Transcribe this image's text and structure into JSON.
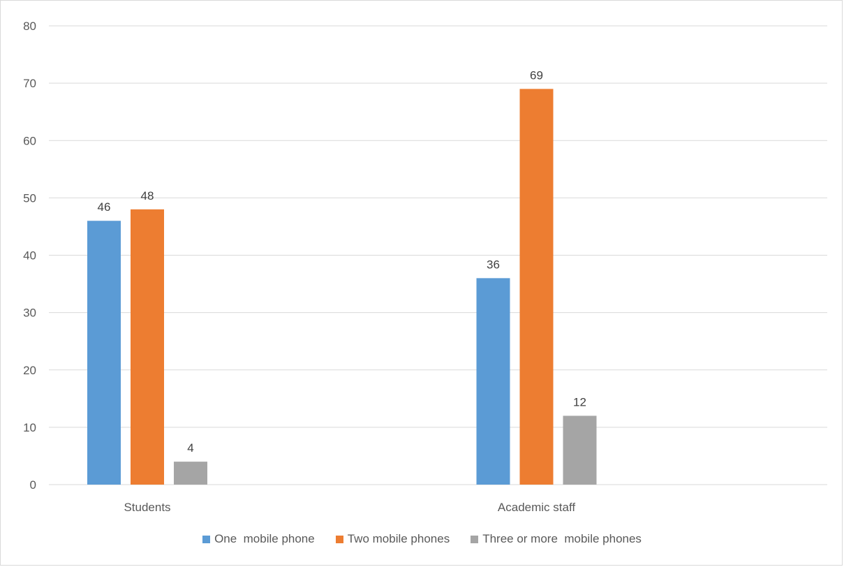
{
  "chart_data": {
    "type": "bar",
    "title": "",
    "xlabel": "",
    "ylabel": "",
    "categories": [
      "Students",
      "Academic staff"
    ],
    "series": [
      {
        "name": "One  mobile phone",
        "values": [
          46,
          36
        ],
        "color": "#5b9bd5"
      },
      {
        "name": "Two mobile phones",
        "values": [
          48,
          69
        ],
        "color": "#ed7d31"
      },
      {
        "name": "Three or more  mobile phones",
        "values": [
          4,
          12
        ],
        "color": "#a5a5a5"
      }
    ],
    "ylim": [
      0,
      80
    ],
    "yticks": [
      0,
      10,
      20,
      30,
      40,
      50,
      60,
      70,
      80
    ],
    "grid": true,
    "data_labels": true,
    "legend_position": "bottom"
  }
}
